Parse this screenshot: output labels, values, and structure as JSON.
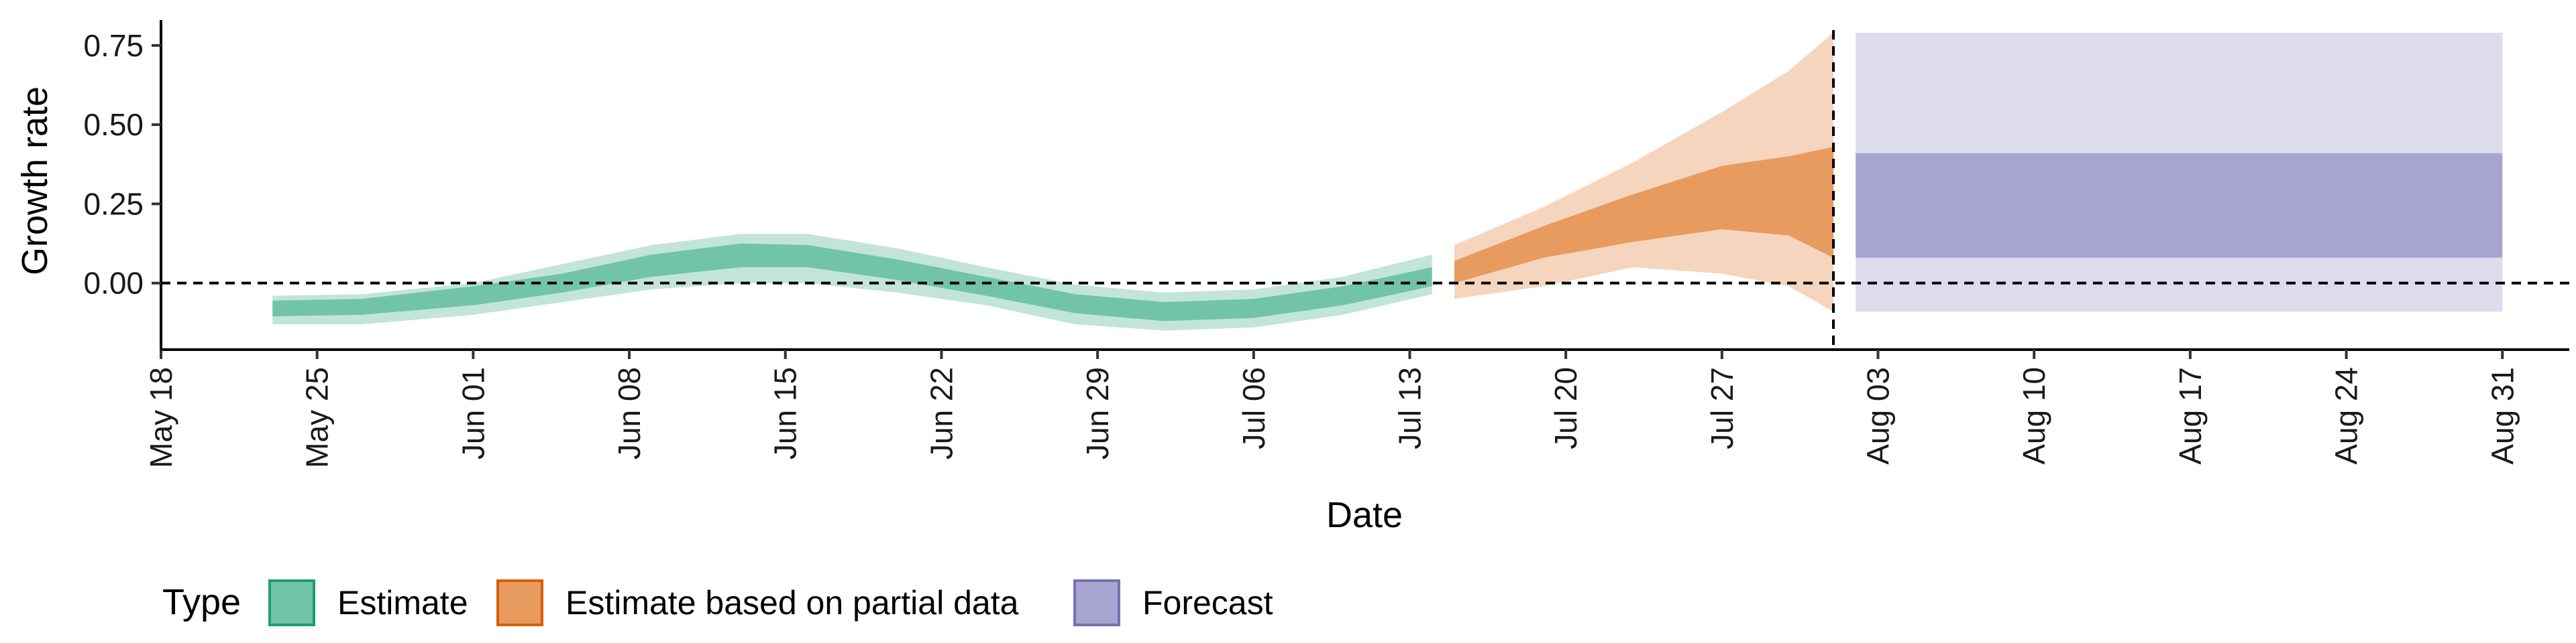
{
  "chart_data": {
    "type": "area",
    "xlabel": "Date",
    "ylabel": "Growth rate",
    "x_tick_labels": [
      "May 18",
      "May 25",
      "Jun 01",
      "Jun 08",
      "Jun 15",
      "Jun 22",
      "Jun 29",
      "Jul 06",
      "Jul 13",
      "Jul 20",
      "Jul 27",
      "Aug 03",
      "Aug 10",
      "Aug 17",
      "Aug 24",
      "Aug 31"
    ],
    "x_tick_dates": [
      "2020-05-18",
      "2020-05-25",
      "2020-06-01",
      "2020-06-08",
      "2020-06-15",
      "2020-06-22",
      "2020-06-29",
      "2020-07-06",
      "2020-07-13",
      "2020-07-20",
      "2020-07-27",
      "2020-08-03",
      "2020-08-10",
      "2020-08-17",
      "2020-08-24",
      "2020-08-31"
    ],
    "y_tick_labels": [
      "0.00",
      "0.25",
      "0.50",
      "0.75"
    ],
    "y_ticks": [
      0,
      0.25,
      0.5,
      0.75
    ],
    "xlim": [
      "2020-05-18",
      "2020-09-03"
    ],
    "ylim": [
      -0.21,
      0.83
    ],
    "reference_lines": {
      "horizontal_y": 0,
      "vertical_date": "2020-08-01"
    },
    "grid": false,
    "legend": {
      "title": "Type",
      "position": "bottom-left",
      "entries": [
        {
          "label": "Estimate",
          "fill": "#72c4a8",
          "stroke": "#1b9e77"
        },
        {
          "label": "Estimate based on partial data",
          "fill": "#e89b5e",
          "stroke": "#d95f02"
        },
        {
          "label": "Forecast",
          "fill": "#a8a4d0",
          "stroke": "#7570b3"
        }
      ]
    },
    "series": [
      {
        "name": "Estimate",
        "color_inner": "#72c4a8",
        "color_outer": "#c2e5d8",
        "points": [
          {
            "x": "2020-05-23",
            "lo90": -0.13,
            "lo50": -0.105,
            "hi50": -0.055,
            "hi90": -0.04
          },
          {
            "x": "2020-05-27",
            "lo90": -0.13,
            "lo50": -0.1,
            "hi50": -0.05,
            "hi90": -0.035
          },
          {
            "x": "2020-06-01",
            "lo90": -0.1,
            "lo50": -0.07,
            "hi50": -0.01,
            "hi90": 0.0
          },
          {
            "x": "2020-06-05",
            "lo90": -0.06,
            "lo50": -0.03,
            "hi50": 0.03,
            "hi90": 0.06
          },
          {
            "x": "2020-06-09",
            "lo90": -0.02,
            "lo50": 0.02,
            "hi50": 0.09,
            "hi90": 0.12
          },
          {
            "x": "2020-06-13",
            "lo90": 0.0,
            "lo50": 0.05,
            "hi50": 0.125,
            "hi90": 0.155
          },
          {
            "x": "2020-06-16",
            "lo90": 0.0,
            "lo50": 0.05,
            "hi50": 0.12,
            "hi90": 0.155
          },
          {
            "x": "2020-06-20",
            "lo90": -0.03,
            "lo50": 0.01,
            "hi50": 0.075,
            "hi90": 0.11
          },
          {
            "x": "2020-06-24",
            "lo90": -0.07,
            "lo50": -0.04,
            "hi50": 0.02,
            "hi90": 0.05
          },
          {
            "x": "2020-06-28",
            "lo90": -0.13,
            "lo50": -0.095,
            "hi50": -0.035,
            "hi90": -0.005
          },
          {
            "x": "2020-07-02",
            "lo90": -0.15,
            "lo50": -0.12,
            "hi50": -0.06,
            "hi90": -0.03
          },
          {
            "x": "2020-07-06",
            "lo90": -0.14,
            "lo50": -0.11,
            "hi50": -0.05,
            "hi90": -0.02
          },
          {
            "x": "2020-07-10",
            "lo90": -0.1,
            "lo50": -0.07,
            "hi50": -0.01,
            "hi90": 0.02
          },
          {
            "x": "2020-07-14",
            "lo90": -0.035,
            "lo50": -0.01,
            "hi50": 0.05,
            "hi90": 0.09
          }
        ]
      },
      {
        "name": "Estimate based on partial data",
        "color_inner": "#e89b5e",
        "color_outer": "#f5d5bd",
        "points": [
          {
            "x": "2020-07-15",
            "lo90": -0.05,
            "lo50": 0.0,
            "hi50": 0.07,
            "hi90": 0.12
          },
          {
            "x": "2020-07-19",
            "lo90": -0.01,
            "lo50": 0.08,
            "hi50": 0.18,
            "hi90": 0.24
          },
          {
            "x": "2020-07-23",
            "lo90": 0.05,
            "lo50": 0.13,
            "hi50": 0.28,
            "hi90": 0.38
          },
          {
            "x": "2020-07-27",
            "lo90": 0.03,
            "lo50": 0.17,
            "hi50": 0.37,
            "hi90": 0.54
          },
          {
            "x": "2020-07-30",
            "lo90": -0.01,
            "lo50": 0.15,
            "hi50": 0.4,
            "hi90": 0.67
          },
          {
            "x": "2020-08-01",
            "lo90": -0.09,
            "lo50": 0.08,
            "hi50": 0.43,
            "hi90": 0.79
          }
        ]
      },
      {
        "name": "Forecast",
        "color_inner": "#a8a4d0",
        "color_outer": "#dddcec",
        "points": [
          {
            "x": "2020-08-02",
            "lo90": -0.09,
            "lo50": 0.08,
            "hi50": 0.41,
            "hi90": 0.79
          },
          {
            "x": "2020-08-31",
            "lo90": -0.09,
            "lo50": 0.08,
            "hi50": 0.41,
            "hi90": 0.79
          }
        ]
      }
    ]
  }
}
